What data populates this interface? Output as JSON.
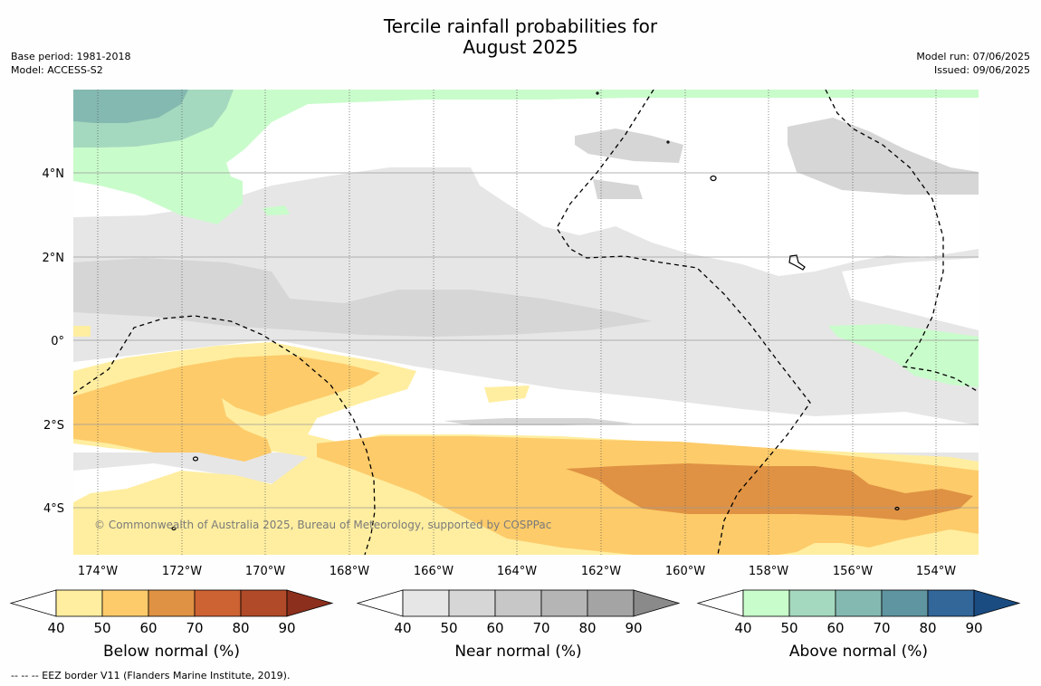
{
  "title": {
    "line1": "Tercile rainfall probabilities for",
    "line2": "August 2025"
  },
  "meta": {
    "base_period": "Base period: 1981-2018",
    "model": "Model: ACCESS-S2",
    "model_run": "Model run: 07/06/2025",
    "issued": "Issued: 09/06/2025"
  },
  "map": {
    "lon_labels": [
      "174°W",
      "172°W",
      "170°W",
      "168°W",
      "166°W",
      "164°W",
      "162°W",
      "160°W",
      "158°W",
      "156°W",
      "154°W"
    ],
    "lat_labels": [
      "4°N",
      "2°N",
      "0°",
      "2°S",
      "4°S"
    ],
    "copyright": "© Commonwealth of Australia 2025, Bureau of Meteorology, supported by COSPPac"
  },
  "colorbars": [
    {
      "title": "Below normal (%)",
      "ticks": [
        "40",
        "50",
        "60",
        "70",
        "80",
        "90"
      ],
      "colors": [
        "#ffeea0",
        "#fdcb6a",
        "#df9243",
        "#cd6232",
        "#b04a28",
        "#8c2f1c"
      ]
    },
    {
      "title": "Near normal (%)",
      "ticks": [
        "40",
        "50",
        "60",
        "70",
        "80",
        "90"
      ],
      "colors": [
        "#e6e6e6",
        "#d6d6d6",
        "#c7c7c7",
        "#b5b5b5",
        "#a4a4a4",
        "#8a8a8a"
      ]
    },
    {
      "title": "Above normal (%)",
      "ticks": [
        "40",
        "50",
        "60",
        "70",
        "80",
        "90"
      ],
      "colors": [
        "#c9fccb",
        "#a5d9bf",
        "#84b9b1",
        "#5f95a0",
        "#336699",
        "#1a4c82"
      ]
    }
  ],
  "footnote": "--  --  -- EEZ border V11 (Flanders Marine Institute, 2019)."
}
